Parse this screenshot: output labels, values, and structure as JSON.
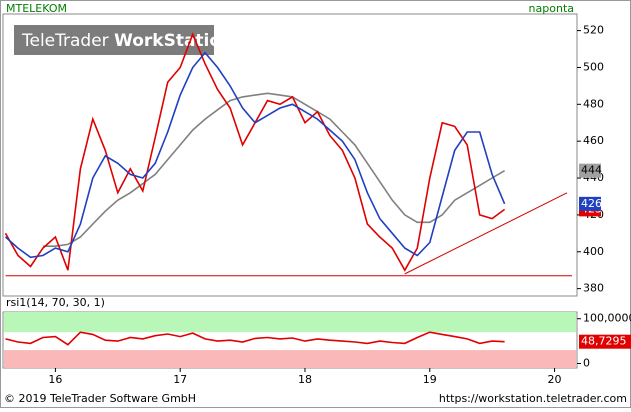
{
  "header": {
    "symbol": "MTELEKOM",
    "interval": "naponta",
    "watermark_a": "TeleTrader ",
    "watermark_b": "WorkStation"
  },
  "footer": {
    "left": "© 2019 TeleTrader Software GmbH",
    "right": "https://workstation.teletrader.com"
  },
  "chart_data": [
    {
      "type": "line",
      "xlim": [
        2015.58,
        2020.18
      ],
      "ylim": [
        376,
        529
      ],
      "yticks": [
        380,
        400,
        420,
        440,
        460,
        480,
        500,
        520
      ],
      "series": [
        {
          "color": "#808080",
          "x": [
            2015.6,
            2015.7,
            2015.8,
            2015.9,
            2016.0,
            2016.1,
            2016.2,
            2016.3,
            2016.4,
            2016.5,
            2016.6,
            2016.7,
            2016.8,
            2016.9,
            2017.0,
            2017.1,
            2017.2,
            2017.3,
            2017.4,
            2017.5,
            2017.6,
            2017.7,
            2017.8,
            2017.9,
            2018.0,
            2018.1,
            2018.2,
            2018.3,
            2018.4,
            2018.5,
            2018.6,
            2018.7,
            2018.8,
            2018.9,
            2019.0,
            2019.1,
            2019.2,
            2019.3,
            2019.4,
            2019.5,
            2019.6
          ],
          "values": [
            null,
            null,
            null,
            403,
            403,
            404,
            408,
            415,
            422,
            428,
            432,
            437,
            442,
            450,
            458,
            466,
            472,
            477,
            482,
            484,
            485,
            486,
            485,
            484,
            480,
            476,
            472,
            465,
            458,
            448,
            438,
            428,
            420,
            416,
            416,
            420,
            428,
            432,
            436,
            440,
            444
          ]
        },
        {
          "color": "#e00000",
          "x": [
            2015.6,
            2015.7,
            2015.8,
            2015.9,
            2016.0,
            2016.1,
            2016.2,
            2016.3,
            2016.4,
            2016.5,
            2016.6,
            2016.7,
            2016.8,
            2016.9,
            2017.0,
            2017.1,
            2017.2,
            2017.3,
            2017.4,
            2017.5,
            2017.6,
            2017.7,
            2017.8,
            2017.9,
            2018.0,
            2018.1,
            2018.2,
            2018.3,
            2018.4,
            2018.5,
            2018.6,
            2018.7,
            2018.8,
            2018.9,
            2019.0,
            2019.1,
            2019.2,
            2019.3,
            2019.4,
            2019.5,
            2019.6
          ],
          "values": [
            410,
            398,
            392,
            402,
            408,
            390,
            445,
            472,
            455,
            432,
            445,
            433,
            462,
            492,
            500,
            518,
            502,
            488,
            478,
            458,
            470,
            482,
            480,
            484,
            470,
            476,
            463,
            455,
            440,
            415,
            408,
            402,
            390,
            402,
            440,
            470,
            468,
            458,
            420,
            418,
            423
          ]
        },
        {
          "color": "#2040c0",
          "x": [
            2015.6,
            2015.7,
            2015.8,
            2015.9,
            2016.0,
            2016.1,
            2016.2,
            2016.3,
            2016.4,
            2016.5,
            2016.6,
            2016.7,
            2016.8,
            2016.9,
            2017.0,
            2017.1,
            2017.2,
            2017.3,
            2017.4,
            2017.5,
            2017.6,
            2017.7,
            2017.8,
            2017.9,
            2018.0,
            2018.1,
            2018.2,
            2018.3,
            2018.4,
            2018.5,
            2018.6,
            2018.7,
            2018.8,
            2018.9,
            2019.0,
            2019.1,
            2019.2,
            2019.3,
            2019.4,
            2019.5,
            2019.6
          ],
          "values": [
            408,
            402,
            397,
            398,
            402,
            400,
            415,
            440,
            452,
            448,
            442,
            440,
            448,
            465,
            485,
            500,
            508,
            500,
            490,
            478,
            470,
            474,
            478,
            480,
            476,
            472,
            466,
            460,
            450,
            432,
            418,
            410,
            402,
            398,
            405,
            430,
            455,
            465,
            465,
            442,
            426
          ]
        }
      ],
      "lines": [
        {
          "color": "#d00000",
          "x": [
            2015.6,
            2020.14
          ],
          "values": [
            387,
            387
          ]
        },
        {
          "color": "#d00000",
          "x": [
            2018.8,
            2020.1
          ],
          "values": [
            388,
            432
          ]
        }
      ]
    },
    {
      "type": "line",
      "title": "rsi1(14, 70, 30, 1)",
      "xlim": [
        2015.58,
        2020.18
      ],
      "ylim": [
        -10,
        115
      ],
      "yticks": [
        {
          "value": 100,
          "label": "100,0000"
        },
        0
      ],
      "xticks": [
        {
          "value": 2016,
          "label": "16"
        },
        {
          "value": 2017,
          "label": "17"
        },
        {
          "value": 2018,
          "label": "18"
        },
        {
          "value": 2019,
          "label": "19"
        },
        {
          "value": 2020,
          "label": "20"
        }
      ],
      "bands": [
        {
          "from": 70,
          "to": 115,
          "color": "#b8f7b8"
        },
        {
          "from": -10,
          "to": 30,
          "color": "#fbb8b8"
        }
      ],
      "series": [
        {
          "color": "#e00000",
          "x": [
            2015.6,
            2015.7,
            2015.8,
            2015.9,
            2016.0,
            2016.1,
            2016.2,
            2016.3,
            2016.4,
            2016.5,
            2016.6,
            2016.7,
            2016.8,
            2016.9,
            2017.0,
            2017.1,
            2017.2,
            2017.3,
            2017.4,
            2017.5,
            2017.6,
            2017.7,
            2017.8,
            2017.9,
            2018.0,
            2018.1,
            2018.2,
            2018.3,
            2018.4,
            2018.5,
            2018.6,
            2018.7,
            2018.8,
            2018.9,
            2019.0,
            2019.1,
            2019.2,
            2019.3,
            2019.4,
            2019.5,
            2019.6
          ],
          "values": [
            55,
            48,
            45,
            58,
            60,
            42,
            70,
            65,
            52,
            50,
            58,
            55,
            62,
            66,
            60,
            68,
            55,
            50,
            52,
            48,
            56,
            58,
            55,
            57,
            50,
            55,
            52,
            50,
            48,
            45,
            50,
            47,
            45,
            58,
            70,
            65,
            60,
            55,
            45,
            50,
            48.7295
          ],
          "last_value_label": "48,7295"
        }
      ]
    }
  ]
}
